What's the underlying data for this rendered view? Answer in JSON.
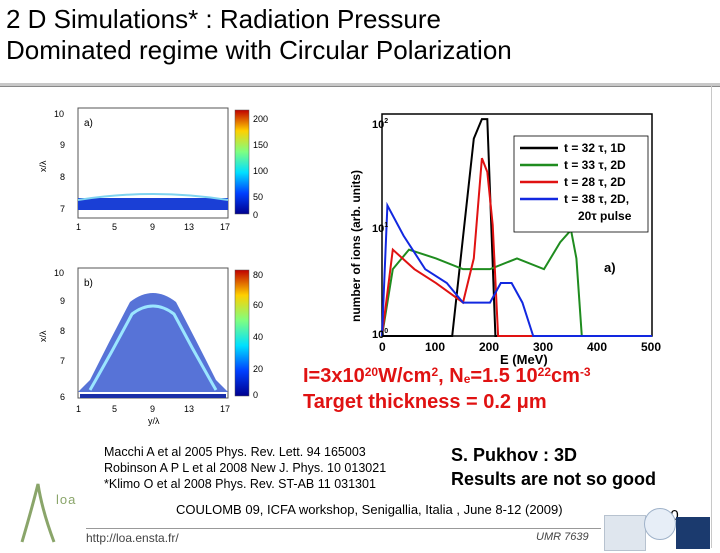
{
  "title": {
    "line1": "2 D Simulations* : Radiation Pressure",
    "line2": "Dominated regime with Circular Polarization"
  },
  "panel_a": {
    "label": "a)",
    "y_ticks": [
      "10",
      "9",
      "8",
      "7"
    ],
    "x_ticks": [
      "1",
      "5",
      "9",
      "13",
      "17"
    ],
    "ylabel": "x/λ",
    "colorbar_ticks": [
      "200",
      "150",
      "100",
      "50",
      "0"
    ]
  },
  "panel_b": {
    "label": "b)",
    "y_ticks": [
      "10",
      "9",
      "8",
      "7",
      "6"
    ],
    "x_ticks": [
      "1",
      "5",
      "9",
      "13",
      "17"
    ],
    "ylabel": "x/λ",
    "xlabel": "y/λ",
    "colorbar_ticks": [
      "80",
      "60",
      "40",
      "20",
      "0"
    ]
  },
  "spectrum_panel": {
    "label": "a)",
    "ylabel": "number of ions (arb. units)",
    "xlabel": "E (MeV)",
    "x_ticks": [
      "0",
      "100",
      "200",
      "300",
      "400",
      "500"
    ],
    "legend": [
      {
        "text": "t = 32 τ, 1D",
        "color": "#000000"
      },
      {
        "text": "t = 33 τ, 2D",
        "color": "#1f8c1f"
      },
      {
        "text": "t = 28 τ, 2D",
        "color": "#e01212"
      },
      {
        "text": "t = 38 τ, 2D,",
        "color": "#1228e0"
      },
      {
        "text": "20τ pulse",
        "color": "#1228e0"
      }
    ]
  },
  "chart_data": {
    "type": "line",
    "xlabel": "E (MeV)",
    "ylabel": "number of ions (arb. units)",
    "xlim": [
      0,
      500
    ],
    "ylim": [
      1,
      100
    ],
    "yscale": "log",
    "series": [
      {
        "name": "t = 32 τ, 1D",
        "color": "#000000",
        "x": [
          0,
          60,
          130,
          170,
          185,
          195,
          210,
          500
        ],
        "y": [
          1,
          1,
          1,
          60,
          90,
          90,
          1,
          1
        ]
      },
      {
        "name": "t = 33 τ, 2D",
        "color": "#1f8c1f",
        "x": [
          0,
          20,
          50,
          100,
          150,
          200,
          250,
          300,
          330,
          350,
          360,
          370,
          500
        ],
        "y": [
          1,
          4,
          6,
          5,
          4,
          4,
          5,
          4,
          7,
          9,
          5,
          1,
          1
        ]
      },
      {
        "name": "t = 28 τ, 2D",
        "color": "#e01212",
        "x": [
          0,
          20,
          60,
          100,
          150,
          170,
          185,
          195,
          205,
          215,
          240,
          500
        ],
        "y": [
          1,
          6,
          4,
          3,
          2,
          5,
          40,
          30,
          10,
          1,
          1,
          1
        ]
      },
      {
        "name": "t = 38 τ, 2D, 20τ pulse",
        "color": "#1228e0",
        "x": [
          0,
          10,
          40,
          80,
          120,
          150,
          200,
          220,
          240,
          260,
          280,
          500
        ],
        "y": [
          1,
          15,
          8,
          4,
          3,
          2,
          2,
          3,
          3,
          2,
          1,
          1
        ]
      }
    ]
  },
  "formula": {
    "I_prefix": "I=3x10",
    "I_exp": "20",
    "I_unit": "W/cm",
    "I_unit_exp": "2",
    "sep": ", N",
    "Ne_sub": "e",
    "Ne_val": "=1.5 10",
    "Ne_exp": "22",
    "Ne_unit": "cm",
    "Ne_unit_exp": "-3"
  },
  "target_thickness": "Target thickness = 0.2 μm",
  "references": [
    "Macchi A et al 2005 Phys. Rev. Lett. 94 165003",
    "Robinson A P L et al 2008 New J. Phys. 10 013021",
    "*Klimo O et al 2008 Phys. Rev. ST-AB 11 031301"
  ],
  "pukhov": {
    "line1": "S. Pukhov : 3D",
    "line2": "Results are not so good"
  },
  "conference": "COULOMB 09, ICFA workshop, Senigallia, Italia , June 8-12 (2009)",
  "page_number": "10",
  "url": "http://loa.ensta.fr/",
  "umr": "UMR 7639",
  "logo_text": "loa"
}
